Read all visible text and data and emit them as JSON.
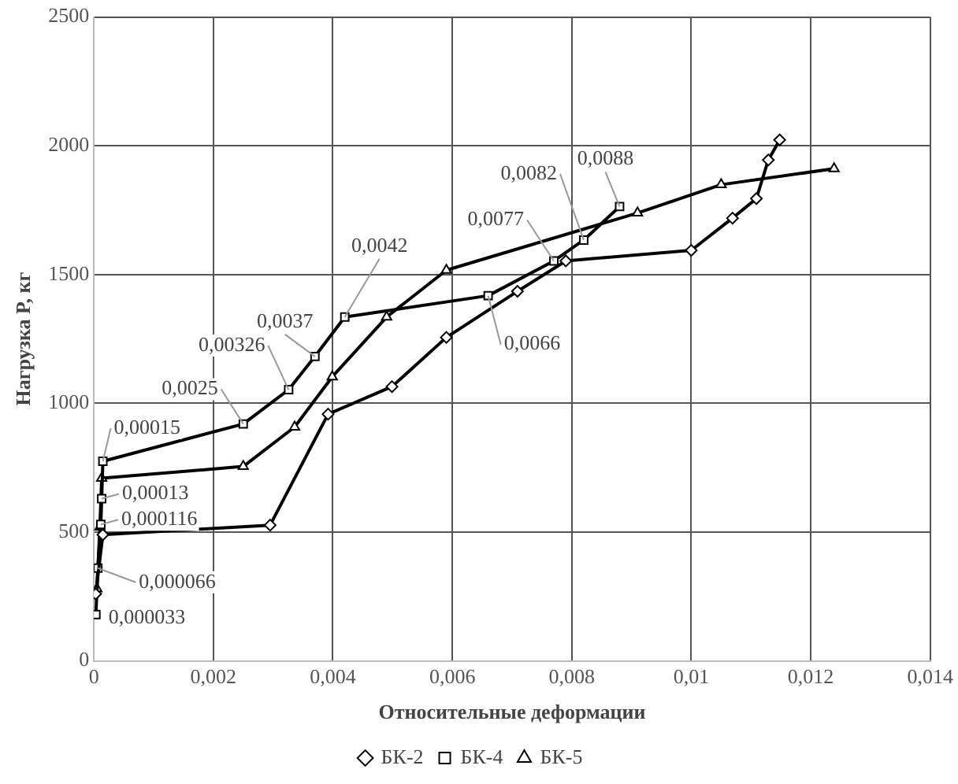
{
  "chart_data": {
    "type": "line",
    "xlabel": "Относительные деформации",
    "ylabel": "Нагрузка P, кг",
    "xlim": [
      0,
      0.014
    ],
    "xticks": [
      0,
      {
        "value": 0.002,
        "label": "0,002"
      },
      {
        "value": 0.004,
        "label": "0,004"
      },
      {
        "value": 0.006,
        "label": "0,006"
      },
      {
        "value": 0.008,
        "label": "0,008"
      },
      {
        "value": 0.01,
        "label": "0,01"
      },
      {
        "value": 0.012,
        "label": "0,012"
      },
      {
        "value": 0.014,
        "label": "0,014"
      }
    ],
    "ylim": [
      0,
      2500
    ],
    "yticks": [
      0,
      500,
      1000,
      1500,
      2000,
      2500
    ],
    "grid": true,
    "legend": "bottom",
    "line_style": "solid",
    "series": [
      {
        "name": "БК-2",
        "color": "#000000",
        "marker": "diamond",
        "x": [
          3e-05,
          0.00015,
          0.00295,
          0.00392,
          0.00499,
          0.0059,
          0.00709,
          0.0079,
          0.01,
          0.01069,
          0.01109,
          0.01129,
          0.01148
        ],
        "values": [
          260,
          490,
          527,
          958,
          1065,
          1256,
          1435,
          1553,
          1594,
          1719,
          1795,
          1945,
          2023
        ]
      },
      {
        "name": "БК-4",
        "color": "#000000",
        "marker": "square",
        "x": [
          3.3e-05,
          6.6e-05,
          0.000116,
          0.00013,
          0.00015,
          0.0025,
          0.00326,
          0.0037,
          0.0042,
          0.0066,
          0.0077,
          0.0082,
          0.0088
        ],
        "values": [
          180,
          360,
          530,
          630,
          775,
          920,
          1053,
          1182,
          1335,
          1418,
          1553,
          1634,
          1764
        ]
      },
      {
        "name": "БК-5",
        "color": "#000000",
        "marker": "triangle",
        "x": [
          5e-05,
          0.0001,
          0.00013,
          0.0025,
          0.00336,
          0.00399,
          0.0049,
          0.0059,
          0.0091,
          0.0105,
          0.01239
        ],
        "values": [
          280,
          520,
          709,
          755,
          908,
          1103,
          1335,
          1517,
          1739,
          1849,
          1911
        ]
      }
    ],
    "annotations": [
      {
        "text": "0,000033",
        "x": 3.3e-05,
        "y": 180
      },
      {
        "text": "0,000066",
        "x": 6.6e-05,
        "y": 360
      },
      {
        "text": "0,000116",
        "x": 0.000116,
        "y": 530
      },
      {
        "text": "0,00013",
        "x": 0.00013,
        "y": 630
      },
      {
        "text": "0,00015",
        "x": 0.00015,
        "y": 775
      },
      {
        "text": "0,0025",
        "x": 0.0025,
        "y": 920
      },
      {
        "text": "0,00326",
        "x": 0.00326,
        "y": 1053
      },
      {
        "text": "0,0037",
        "x": 0.0037,
        "y": 1182
      },
      {
        "text": "0,0042",
        "x": 0.0042,
        "y": 1335
      },
      {
        "text": "0,0066",
        "x": 0.0066,
        "y": 1418
      },
      {
        "text": "0,0077",
        "x": 0.0077,
        "y": 1553
      },
      {
        "text": "0,0082",
        "x": 0.0082,
        "y": 1634
      },
      {
        "text": "0,0088",
        "x": 0.0088,
        "y": 1764
      }
    ]
  }
}
